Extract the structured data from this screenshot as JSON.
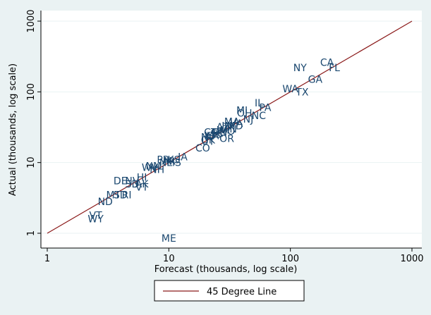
{
  "chart_data": {
    "type": "scatter",
    "title": "",
    "xlabel": "Forecast (thousands, log scale)",
    "ylabel": "Actual (thousands, log scale)",
    "xscale": "log",
    "yscale": "log",
    "xlim": [
      1,
      1000
    ],
    "ylim": [
      1,
      1000
    ],
    "xticks": [
      1,
      10,
      100,
      1000
    ],
    "xtick_labels": [
      "1",
      "10",
      "100",
      "1000"
    ],
    "yticks": [
      1,
      10,
      100,
      1000
    ],
    "ytick_labels": [
      "1",
      "10",
      "100",
      "1000"
    ],
    "grid": "horizontal",
    "legend": {
      "placement": "bottom",
      "entries": [
        "45 Degree Line"
      ]
    },
    "reference_line": {
      "name": "45 Degree Line",
      "from": [
        1,
        1
      ],
      "to": [
        1000,
        1000
      ],
      "color": "#8b1a1a"
    },
    "marker_color": "#1a476f",
    "points": [
      {
        "label": "CA",
        "x": 200,
        "y": 260
      },
      {
        "label": "FL",
        "x": 230,
        "y": 220
      },
      {
        "label": "NY",
        "x": 120,
        "y": 220
      },
      {
        "label": "GA",
        "x": 160,
        "y": 150
      },
      {
        "label": "WA",
        "x": 100,
        "y": 110
      },
      {
        "label": "TX",
        "x": 125,
        "y": 100
      },
      {
        "label": "IL",
        "x": 55,
        "y": 70
      },
      {
        "label": "PA",
        "x": 62,
        "y": 60
      },
      {
        "label": "MI",
        "x": 40,
        "y": 55
      },
      {
        "label": "OH",
        "x": 42,
        "y": 50
      },
      {
        "label": "NC",
        "x": 55,
        "y": 46
      },
      {
        "label": "NJ",
        "x": 45,
        "y": 41
      },
      {
        "label": "MA",
        "x": 33,
        "y": 38
      },
      {
        "label": "VA",
        "x": 36,
        "y": 36
      },
      {
        "label": "MD",
        "x": 35,
        "y": 33
      },
      {
        "label": "IN",
        "x": 30,
        "y": 33
      },
      {
        "label": "AZ",
        "x": 28,
        "y": 32
      },
      {
        "label": "TN",
        "x": 32,
        "y": 30
      },
      {
        "label": "WI",
        "x": 28,
        "y": 29
      },
      {
        "label": "MO",
        "x": 30,
        "y": 28
      },
      {
        "label": "CT",
        "x": 22,
        "y": 27
      },
      {
        "label": "MN",
        "x": 26,
        "y": 27
      },
      {
        "label": "SC",
        "x": 25,
        "y": 26
      },
      {
        "label": "AL",
        "x": 24,
        "y": 25
      },
      {
        "label": "LA",
        "x": 23,
        "y": 24
      },
      {
        "label": "KY",
        "x": 22,
        "y": 24
      },
      {
        "label": "NV",
        "x": 21,
        "y": 23
      },
      {
        "label": "OR",
        "x": 30,
        "y": 22
      },
      {
        "label": "OK",
        "x": 21,
        "y": 21
      },
      {
        "label": "UT",
        "x": 21,
        "y": 20
      },
      {
        "label": "CO",
        "x": 19,
        "y": 16
      },
      {
        "label": "IA",
        "x": 13,
        "y": 12
      },
      {
        "label": "KS",
        "x": 11,
        "y": 11
      },
      {
        "label": "PR",
        "x": 9,
        "y": 11
      },
      {
        "label": "AR",
        "x": 10,
        "y": 10.5
      },
      {
        "label": "MS",
        "x": 11,
        "y": 10
      },
      {
        "label": "NE",
        "x": 9.5,
        "y": 10
      },
      {
        "label": "NM",
        "x": 7.5,
        "y": 9
      },
      {
        "label": "WV",
        "x": 7,
        "y": 8.5
      },
      {
        "label": "NH",
        "x": 8,
        "y": 8
      },
      {
        "label": "HI",
        "x": 6,
        "y": 6.2
      },
      {
        "label": "DE",
        "x": 4,
        "y": 5.5
      },
      {
        "label": "NV",
        "x": 5,
        "y": 5.5
      },
      {
        "label": "SD",
        "x": 5,
        "y": 5
      },
      {
        "label": "AK",
        "x": 6,
        "y": 5
      },
      {
        "label": "VT",
        "x": 6,
        "y": 4.5
      },
      {
        "label": "MT",
        "x": 3.5,
        "y": 3.5
      },
      {
        "label": "SD",
        "x": 4,
        "y": 3.5
      },
      {
        "label": "RI",
        "x": 4.5,
        "y": 3.5
      },
      {
        "label": "ND",
        "x": 3,
        "y": 2.8
      },
      {
        "label": "VT",
        "x": 2.5,
        "y": 1.8
      },
      {
        "label": "WY",
        "x": 2.5,
        "y": 1.6
      },
      {
        "label": "ME",
        "x": 10,
        "y": 0.85
      }
    ]
  }
}
